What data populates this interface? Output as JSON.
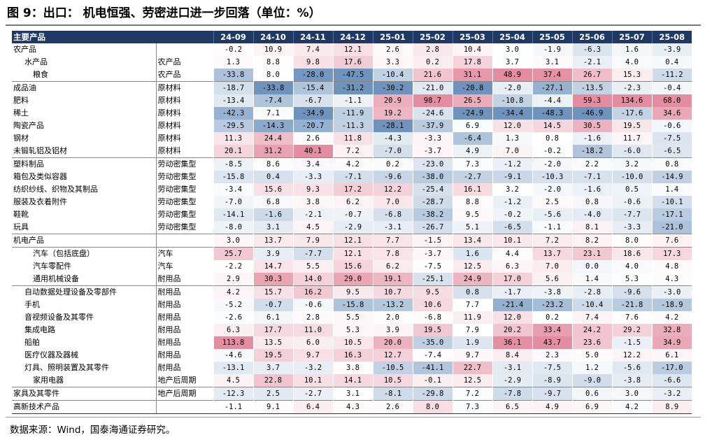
{
  "figure": {
    "title": "图 9：出口： 机电恒强、劳密进口进一步回落（单位：%）",
    "source": "数据来源：Wind，国泰海通证券研究。"
  },
  "table": {
    "header_label": "主要产品",
    "months": [
      "24-09",
      "24-10",
      "24-11",
      "24-12",
      "25-01",
      "25-02",
      "25-03",
      "25-04",
      "25-05",
      "25-06",
      "25-07",
      "25-08"
    ],
    "rows": [
      {
        "name": "农产品",
        "category": "",
        "level": 0,
        "values": [
          "-0.2",
          "10.9",
          "7.4",
          "12.1",
          "2.6",
          "2.8",
          "10.4",
          "3.0",
          "-1.9",
          "-6.3",
          "1.6",
          "-3.9"
        ]
      },
      {
        "name": "水产品",
        "category": "农产品",
        "level": 1,
        "values": [
          "1.3",
          "8.8",
          "9.8",
          "17.6",
          "3.3",
          "0.2",
          "17.8",
          "3.7",
          "3.1",
          "-2.1",
          "4.0",
          "0.4"
        ]
      },
      {
        "name": "粮食",
        "category": "农产品",
        "level": 2,
        "values": [
          "-33.8",
          "8.0",
          "-28.0",
          "-47.5",
          "-10.4",
          "21.6",
          "31.1",
          "48.9",
          "37.4",
          "26.7",
          "15.3",
          "-11.2"
        ]
      },
      {
        "name": "成品油",
        "category": "原材料",
        "level": 0,
        "sep": true,
        "values": [
          "-18.7",
          "-33.8",
          "-15.4",
          "-31.2",
          "-30.2",
          "-21.0",
          "-20.8",
          "-2.0",
          "-27.1",
          "-13.5",
          "-2.3",
          "-0.4"
        ]
      },
      {
        "name": "肥料",
        "category": "原材料",
        "level": 0,
        "values": [
          "-13.4",
          "-7.4",
          "-6.7",
          "-1.1",
          "20.9",
          "98.7",
          "26.5",
          "-10.8",
          "-4.4",
          "59.3",
          "134.6",
          "68.0"
        ]
      },
      {
        "name": "稀土",
        "category": "原材料",
        "level": 0,
        "values": [
          "-42.3",
          "7.1",
          "-34.9",
          "-11.9",
          "19.2",
          "-24.6",
          "-24.9",
          "-34.4",
          "-48.3",
          "-46.9",
          "-17.6",
          "34.6"
        ]
      },
      {
        "name": "陶瓷产品",
        "category": "原材料",
        "level": 0,
        "values": [
          "-29.5",
          "-14.3",
          "-20.7",
          "-11.3",
          "-28.1",
          "-37.9",
          "6.9",
          "12.0",
          "14.5",
          "30.5",
          "19.5",
          "-0.6"
        ]
      },
      {
        "name": "钢材",
        "category": "原材料",
        "level": 0,
        "values": [
          "11.3",
          "24.4",
          "2.6",
          "11.8",
          "-4.3",
          "-3.3",
          "-6.4",
          "1.3",
          "0.8",
          "-1.6",
          "11.7",
          "-7.5"
        ]
      },
      {
        "name": "未锻轧铝及铝材",
        "category": "原材料",
        "level": 0,
        "values": [
          "20.1",
          "31.2",
          "40.1",
          "7.2",
          "-7.0",
          "-3.7",
          "4.9",
          "7.0",
          "-0.2",
          "-18.2",
          "-6.0",
          "-6.5"
        ]
      },
      {
        "name": "塑料制品",
        "category": "劳动密集型",
        "level": 0,
        "sep": true,
        "values": [
          "-8.5",
          "8.6",
          "3.4",
          "4.2",
          "0.2",
          "-23.0",
          "7.3",
          "-1.2",
          "-2.0",
          "2.2",
          "3.2",
          "0.8"
        ]
      },
      {
        "name": "箱包及类似容器",
        "category": "劳动密集型",
        "level": 0,
        "values": [
          "-15.8",
          "0.4",
          "-3.3",
          "-7.1",
          "-9.6",
          "-38.0",
          "-2.7",
          "-9.1",
          "-10.3",
          "-7.1",
          "-10.0",
          "-14.9"
        ]
      },
      {
        "name": "纺织纱线、织物及其制品",
        "category": "劳动密集型",
        "level": 0,
        "values": [
          "-3.4",
          "15.6",
          "9.3",
          "17.2",
          "12.2",
          "-25.4",
          "16.1",
          "3.2",
          "-2.0",
          "-1.6",
          "0.5",
          "1.4"
        ]
      },
      {
        "name": "服装及衣着附件",
        "category": "劳动密集型",
        "level": 0,
        "values": [
          "-7.0",
          "6.8",
          "3.8",
          "6.2",
          "7.0",
          "-28.7",
          "8.8",
          "-1.2",
          "2.5",
          "0.8",
          "-0.6",
          "-10.1"
        ]
      },
      {
        "name": "鞋靴",
        "category": "劳动密集型",
        "level": 0,
        "values": [
          "-14.1",
          "-1.6",
          "-2.1",
          "-0.7",
          "-6.8",
          "-38.2",
          "9.5",
          "-0.2",
          "-5.6",
          "-4.0",
          "-7.7",
          "-17.1"
        ]
      },
      {
        "name": "玩具",
        "category": "劳动密集型",
        "level": 0,
        "values": [
          "-8.0",
          "3.1",
          "4.5",
          "-2.9",
          "-3.1",
          "-26.7",
          "5.1",
          "-6.5",
          "-1.1",
          "8.1",
          "-3.3",
          "-21.0"
        ]
      },
      {
        "name": "机电产品",
        "category": "",
        "level": 0,
        "sep": true,
        "values": [
          "3.0",
          "13.7",
          "7.9",
          "12.1",
          "7.7",
          "-1.5",
          "13.4",
          "10.1",
          "7.2",
          "8.2",
          "8.0",
          "7.6"
        ]
      },
      {
        "name": "汽车（包括底盘）",
        "category": "汽车",
        "level": 2,
        "sep": true,
        "values": [
          "25.7",
          "3.9",
          "-7.7",
          "12.1",
          "7.8",
          "-3.7",
          "1.6",
          "4.4",
          "13.7",
          "23.1",
          "18.6",
          "17.3"
        ]
      },
      {
        "name": "汽车零配件",
        "category": "汽车",
        "level": 2,
        "values": [
          "-2.2",
          "14.7",
          "5.5",
          "15.6",
          "6.2",
          "-7.5",
          "12.5",
          "6.3",
          "7.0",
          "0.0",
          "4.0",
          "4.8"
        ]
      },
      {
        "name": "通用机械设备",
        "category": "耐用品",
        "level": 2,
        "values": [
          "2.9",
          "30.3",
          "14.0",
          "29.0",
          "19.1",
          "-25.1",
          "24.9",
          "17.0",
          "5.6",
          "1.4",
          "5.3",
          "4.3"
        ]
      },
      {
        "name": "自动数据处理设备及零部件",
        "category": "耐用品",
        "level": 1,
        "sep": true,
        "values": [
          "4.2",
          "15.7",
          "16.2",
          "9.5",
          "10.7",
          "9.5",
          "0.8",
          "-1.7",
          "-3.8",
          "-2.8",
          "-9.6",
          "-3.0"
        ]
      },
      {
        "name": "手机",
        "category": "耐用品",
        "level": 1,
        "values": [
          "-5.2",
          "-0.7",
          "-0.6",
          "-15.8",
          "-13.2",
          "10.6",
          "7.7",
          "-21.4",
          "-23.2",
          "-10.4",
          "-21.8",
          "-18.9"
        ]
      },
      {
        "name": "音视频设备及其零件",
        "category": "耐用品",
        "level": 1,
        "values": [
          "-2.6",
          "6.1",
          "2.8",
          "5.5",
          "2.0",
          "-6.8",
          "11.9",
          "12.0",
          "0.2",
          "7.4",
          "7.6",
          "4.2"
        ]
      },
      {
        "name": "集成电路",
        "category": "耐用品",
        "level": 1,
        "values": [
          "6.3",
          "17.7",
          "11.0",
          "5.3",
          "3.9",
          "19.5",
          "7.9",
          "20.2",
          "33.4",
          "24.2",
          "29.2",
          "32.8"
        ]
      },
      {
        "name": "船舶",
        "category": "耐用品",
        "level": 1,
        "values": [
          "113.8",
          "13.5",
          "6.0",
          "10.5",
          "20.0",
          "-35.0",
          "1.9",
          "36.1",
          "43.7",
          "23.6",
          "-1.5",
          "34.9"
        ]
      },
      {
        "name": "医疗仪器及器械",
        "category": "耐用品",
        "level": 1,
        "values": [
          "-4.6",
          "19.5",
          "9.7",
          "16.3",
          "12.7",
          "-7.4",
          "9.7",
          "8.4",
          "2.3",
          "5.0",
          "12.2",
          "6.1"
        ]
      },
      {
        "name": "灯具、照明装置及其零件",
        "category": "耐用品",
        "level": 1,
        "values": [
          "-13.1",
          "3.7",
          "-3.2",
          "3.8",
          "-10.5",
          "-41.1",
          "22.7",
          "-3.1",
          "-7.5",
          "1.2",
          "-5.6",
          "-17.0"
        ]
      },
      {
        "name": "家用电器",
        "category": "地产后周期",
        "level": 2,
        "values": [
          "4.5",
          "22.8",
          "10.1",
          "14.1",
          "10.5",
          "-0.1",
          "12.5",
          "-2.9",
          "-8.9",
          "-9.0",
          "-3.8",
          "-6.6"
        ]
      },
      {
        "name": "家具及其零件",
        "category": "地产后周期",
        "level": 0,
        "sep": true,
        "values": [
          "-12.3",
          "2.5",
          "-2.7",
          "3.1",
          "-8.1",
          "-29.8",
          "7.2",
          "-7.8",
          "-9.7",
          "0.6",
          "3.0",
          "-3.2"
        ]
      },
      {
        "name": "高新技术产品",
        "category": "",
        "level": 0,
        "sep": true,
        "last": true,
        "values": [
          "-1.1",
          "9.1",
          "6.4",
          "4.3",
          "2.6",
          "8.0",
          "7.3",
          "6.5",
          "4.9",
          "6.9",
          "4.2",
          "8.9"
        ]
      }
    ]
  }
}
